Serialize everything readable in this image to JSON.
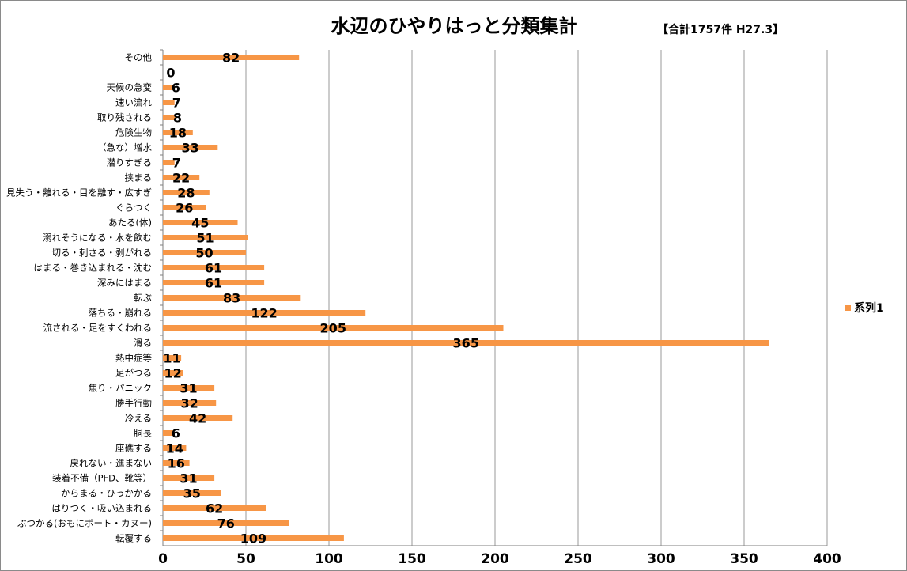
{
  "chart_data": {
    "type": "bar",
    "orientation": "horizontal",
    "title": "水辺のひやりはっと分類集計",
    "subtitle": "【合計1757件 H27.3】",
    "categories": [
      "その他",
      "",
      "天候の急変",
      "速い流れ",
      "取り残される",
      "危険生物",
      "（急な）増水",
      "潜りすぎる",
      "挟まる",
      "見失う・離れる・目を離す・広すぎ",
      "ぐらつく",
      "あたる(体)",
      "溺れそうになる・水を飲む",
      "切る・刺さる・剥がれる",
      "はまる・巻き込まれる・沈む",
      "深みにはまる",
      "転ぶ",
      "落ちる・崩れる",
      "流される・足をすくわれる",
      "滑る",
      "熱中症等",
      "足がつる",
      "焦り・パニック",
      "勝手行動",
      "冷える",
      "胴長",
      "座礁する",
      "戻れない・進まない",
      "装着不備（PFD、靴等）",
      "からまる・ひっかかる",
      "はりつく・吸い込まれる",
      "ぶつかる(おもにボート・カヌー)",
      "転覆する"
    ],
    "series": [
      {
        "name": "系列1",
        "values": [
          82,
          0,
          6,
          7,
          8,
          18,
          33,
          7,
          22,
          28,
          26,
          45,
          51,
          50,
          61,
          61,
          83,
          122,
          205,
          365,
          11,
          12,
          31,
          32,
          42,
          6,
          14,
          16,
          31,
          35,
          62,
          76,
          109
        ]
      }
    ],
    "xlim": [
      0,
      400
    ],
    "xticks": [
      "0",
      "50",
      "100",
      "150",
      "200",
      "250",
      "300",
      "350",
      "400"
    ],
    "grid": "vertical",
    "legend": "right",
    "bar_color": "#F79646",
    "data_labels": true
  }
}
